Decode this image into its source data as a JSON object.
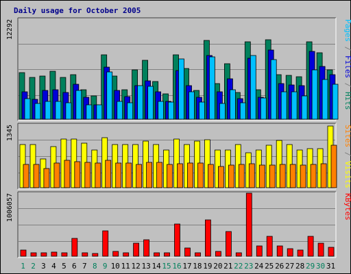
{
  "chart_data": {
    "type": "bar",
    "title": "Daily usage for October 2005",
    "colors": {
      "hits": "#00805c",
      "files": "#0000d8",
      "pages": "#00c0ff",
      "visits": "#ffff00",
      "sites": "#ff8000",
      "kbytes": "#ff0000",
      "weekday_label": "#000000",
      "weekend_label": "#00805c",
      "background": "#c0c0c0",
      "gridline": "#808080"
    },
    "categories": [
      "1",
      "2",
      "3",
      "4",
      "5",
      "6",
      "7",
      "8",
      "9",
      "10",
      "11",
      "12",
      "13",
      "14",
      "15",
      "16",
      "17",
      "18",
      "19",
      "20",
      "21",
      "22",
      "23",
      "24",
      "25",
      "26",
      "27",
      "28",
      "29",
      "30",
      "31"
    ],
    "weekend_days": [
      "1",
      "2",
      "8",
      "9",
      "15",
      "16",
      "22",
      "23",
      "29",
      "30"
    ],
    "panels": [
      {
        "id": "hits-files-pages",
        "y_max_label": "12292",
        "y_max": 12292,
        "side_legend": [
          {
            "text": "Pages",
            "color": "#00c0ff"
          },
          {
            "text": " / ",
            "color": "#808080"
          },
          {
            "text": "Files",
            "color": "#0000d8"
          },
          {
            "text": " / ",
            "color": "#808080"
          },
          {
            "text": "Hits",
            "color": "#00805c"
          }
        ],
        "series": [
          {
            "name": "Hits",
            "color": "#00805c",
            "values": [
              5700,
              5100,
              5300,
              5900,
              5100,
              5500,
              3600,
              2900,
              7900,
              5300,
              3600,
              6100,
              7200,
              4600,
              3100,
              7900,
              6200,
              3500,
              9700,
              4400,
              6800,
              3300,
              9500,
              3600,
              9800,
              5500,
              5400,
              5200,
              9500,
              8200,
              6100
            ]
          },
          {
            "name": "Files",
            "color": "#0000d8",
            "values": [
              3400,
              2400,
              3500,
              3600,
              3300,
              4300,
              2700,
              1800,
              6400,
              3500,
              2800,
              4100,
              4700,
              3400,
              2200,
              6000,
              4100,
              2700,
              7800,
              3400,
              5000,
              2500,
              7500,
              2700,
              8500,
              4400,
              4200,
              4100,
              8300,
              6500,
              5500
            ]
          },
          {
            "name": "Pages",
            "color": "#00c0ff",
            "values": [
              2500,
              1900,
              2200,
              2200,
              2000,
              3500,
              1800,
              1800,
              5800,
              2200,
              2000,
              4100,
              4000,
              2200,
              2100,
              7400,
              3400,
              2100,
              7700,
              1900,
              3600,
              2000,
              7800,
              2600,
              7300,
              3400,
              3400,
              2900,
              6100,
              4900,
              4300
            ]
          }
        ]
      },
      {
        "id": "visits-sites",
        "y_max_label": "1345",
        "y_max": 1345,
        "side_legend": [
          {
            "text": "Sites",
            "color": "#ff8000"
          },
          {
            "text": " / ",
            "color": "#808080"
          },
          {
            "text": "Visits",
            "color": "#ffff00"
          }
        ],
        "series": [
          {
            "name": "Visits",
            "color": "#ffff00",
            "values": [
              920,
              920,
              620,
              880,
              1040,
              1040,
              950,
              800,
              1070,
              920,
              920,
              920,
              1000,
              920,
              800,
              1040,
              920,
              1000,
              1020,
              800,
              800,
              920,
              750,
              800,
              900,
              1010,
              920,
              800,
              830,
              830,
              1320
            ]
          },
          {
            "name": "Sites",
            "color": "#ff8000",
            "values": [
              500,
              500,
              410,
              530,
              590,
              560,
              540,
              520,
              590,
              520,
              520,
              500,
              540,
              540,
              500,
              510,
              520,
              520,
              500,
              450,
              480,
              500,
              510,
              480,
              480,
              500,
              500,
              480,
              500,
              510,
              910
            ]
          }
        ]
      },
      {
        "id": "kbytes",
        "y_max_label": "1006057",
        "y_max": 1006057,
        "side_legend": [
          {
            "text": "KBytes",
            "color": "#ff0000"
          }
        ],
        "series": [
          {
            "name": "KBytes",
            "color": "#ff0000",
            "values": [
              95000,
              55000,
              60000,
              65000,
              60000,
              285000,
              55000,
              45000,
              405000,
              75000,
              60000,
              210000,
              260000,
              55000,
              60000,
              510000,
              135000,
              55000,
              585000,
              75000,
              390000,
              55000,
              1006057,
              160000,
              320000,
              165000,
              120000,
              95000,
              315000,
              210000,
              145000
            ]
          }
        ]
      }
    ]
  }
}
